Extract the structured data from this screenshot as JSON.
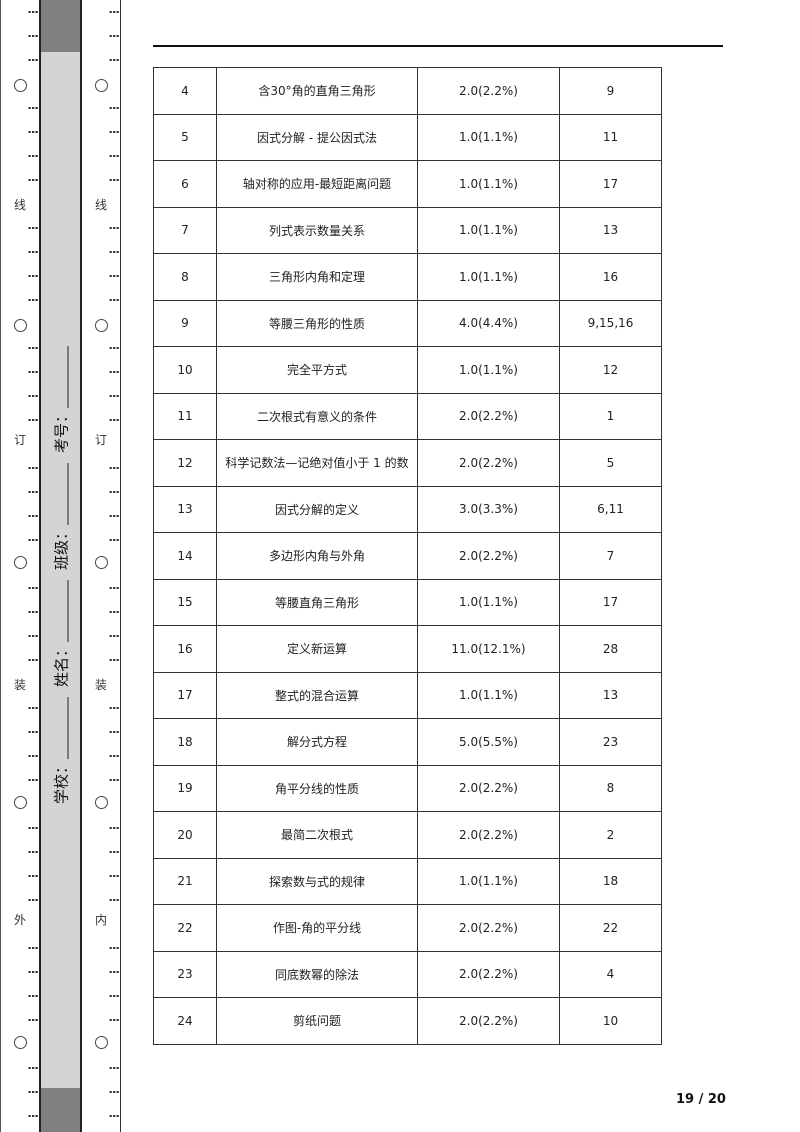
{
  "binding": {
    "outer_chars": [
      "线",
      "订",
      "装",
      "外"
    ],
    "inner_chars": [
      "线",
      "订",
      "装",
      "内"
    ],
    "fields": [
      {
        "label": "学校："
      },
      {
        "label": "姓名："
      },
      {
        "label": "班级："
      },
      {
        "label": "考号："
      }
    ]
  },
  "table": {
    "rows": [
      [
        "4",
        "含30°角的直角三角形",
        "2.0(2.2%)",
        "9"
      ],
      [
        "5",
        "因式分解 - 提公因式法",
        "1.0(1.1%)",
        "11"
      ],
      [
        "6",
        "轴对称的应用-最短距离问题",
        "1.0(1.1%)",
        "17"
      ],
      [
        "7",
        "列式表示数量关系",
        "1.0(1.1%)",
        "13"
      ],
      [
        "8",
        "三角形内角和定理",
        "1.0(1.1%)",
        "16"
      ],
      [
        "9",
        "等腰三角形的性质",
        "4.0(4.4%)",
        "9,15,16"
      ],
      [
        "10",
        "完全平方式",
        "1.0(1.1%)",
        "12"
      ],
      [
        "11",
        "二次根式有意义的条件",
        "2.0(2.2%)",
        "1"
      ],
      [
        "12",
        "科学记数法—记绝对值小于 1 的数",
        "2.0(2.2%)",
        "5"
      ],
      [
        "13",
        "因式分解的定义",
        "3.0(3.3%)",
        "6,11"
      ],
      [
        "14",
        "多边形内角与外角",
        "2.0(2.2%)",
        "7"
      ],
      [
        "15",
        "等腰直角三角形",
        "1.0(1.1%)",
        "17"
      ],
      [
        "16",
        "定义新运算",
        "11.0(12.1%)",
        "28"
      ],
      [
        "17",
        "整式的混合运算",
        "1.0(1.1%)",
        "13"
      ],
      [
        "18",
        "解分式方程",
        "5.0(5.5%)",
        "23"
      ],
      [
        "19",
        "角平分线的性质",
        "2.0(2.2%)",
        "8"
      ],
      [
        "20",
        "最简二次根式",
        "2.0(2.2%)",
        "2"
      ],
      [
        "21",
        "探索数与式的规律",
        "1.0(1.1%)",
        "18"
      ],
      [
        "22",
        "作图-角的平分线",
        "2.0(2.2%)",
        "22"
      ],
      [
        "23",
        "同底数幂的除法",
        "2.0(2.2%)",
        "4"
      ],
      [
        "24",
        "剪纸问题",
        "2.0(2.2%)",
        "10"
      ]
    ]
  },
  "page_number": "19 / 20"
}
